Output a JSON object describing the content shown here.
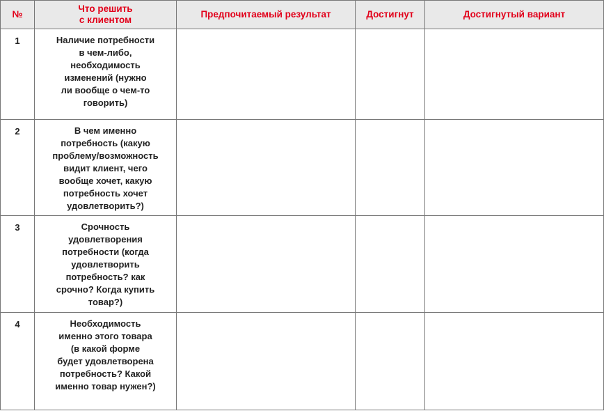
{
  "headers": [
    "№",
    "Что решить\nс клиентом",
    "Предпочитаемый результат",
    "Достигнут",
    "Достигнутый вариант"
  ],
  "rows": [
    {
      "num": "1",
      "task": "Наличие потребности\nв чем-либо,\nнеобходимость\nизменений (нужно\nли вообще о чем-то\nговорить)",
      "preferred": "",
      "achieved": "",
      "achieved_variant": ""
    },
    {
      "num": "2",
      "task": "В чем именно\nпотребность (какую\nпроблему/возможность\nвидит клиент, чего\nвообще хочет, какую\nпотребность хочет\nудовлетворить?)",
      "preferred": "",
      "achieved": "",
      "achieved_variant": ""
    },
    {
      "num": "3",
      "task": "Срочность\nудовлетворения\nпотребности (когда\nудовлетворить\nпотребность? как\nсрочно? Когда купить\nтовар?)",
      "preferred": "",
      "achieved": "",
      "achieved_variant": ""
    },
    {
      "num": "4",
      "task": "Необходимость\nименно этого товара\n(в какой форме\nбудет удовлетворена\nпотребность? Какой\nименно товар нужен?)",
      "preferred": "",
      "achieved": "",
      "achieved_variant": ""
    }
  ],
  "colors": {
    "header_text": "#e2001a",
    "header_bg": "#e9e9e9",
    "border": "#777777"
  }
}
